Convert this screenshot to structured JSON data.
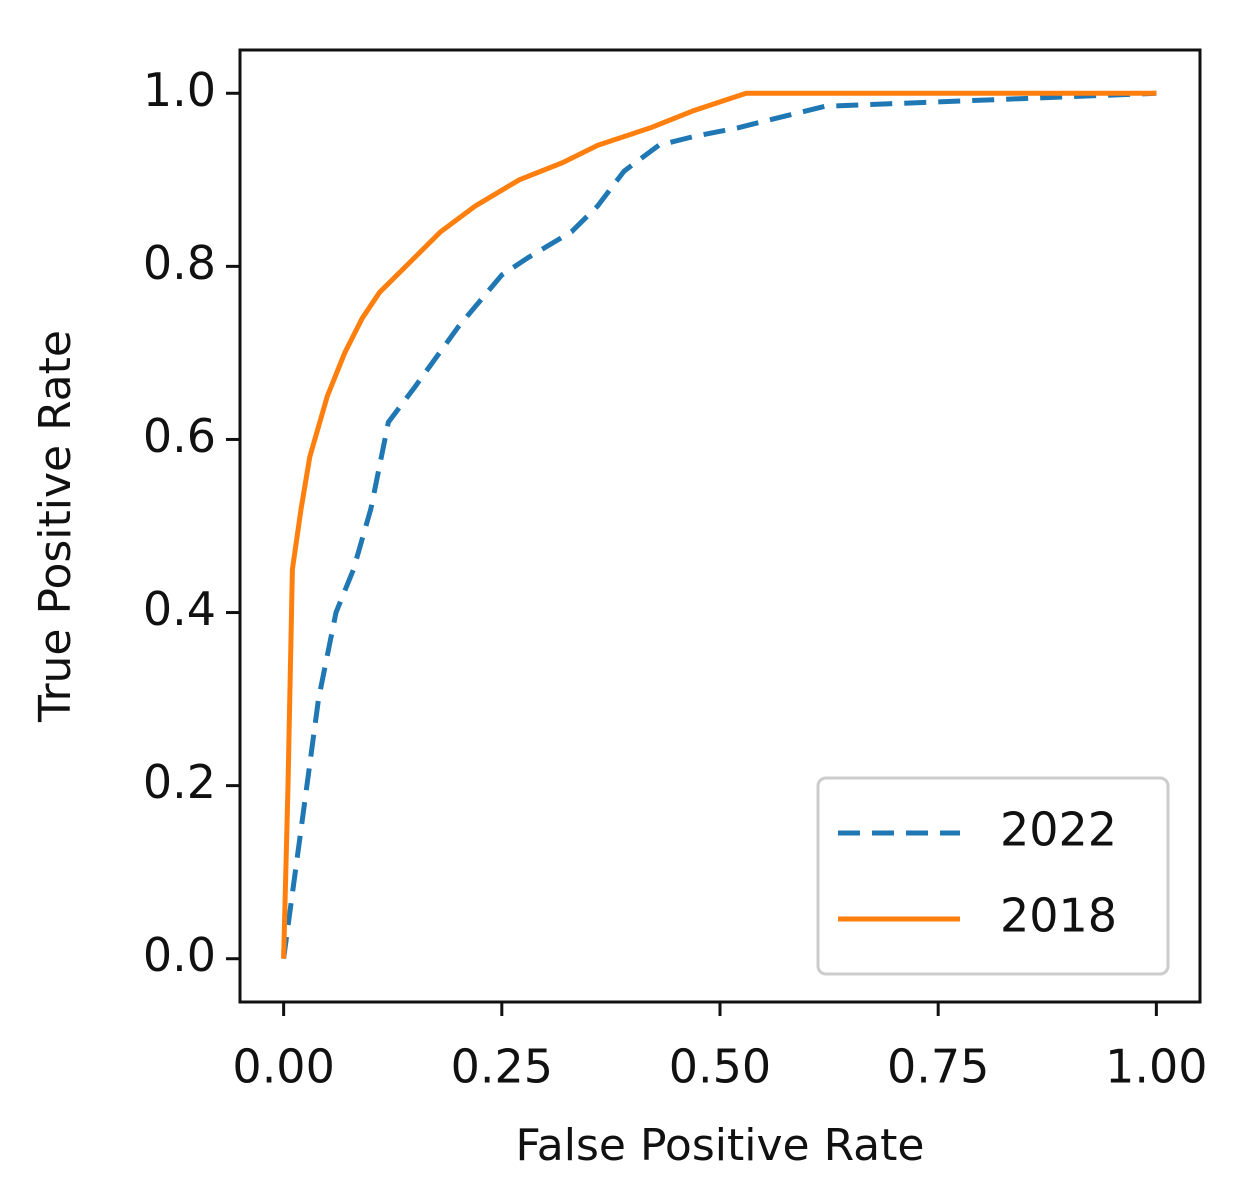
{
  "chart_data": {
    "type": "line",
    "x_label": "False Positive Rate",
    "y_label": "True Positive Rate",
    "xlim": [
      -0.05,
      1.05
    ],
    "ylim": [
      -0.05,
      1.05
    ],
    "xticks": [
      {
        "value": 0,
        "label": "0.00"
      },
      0.25,
      {
        "value": 0.5,
        "label": "0.50"
      },
      0.75,
      {
        "value": 1,
        "label": "1.00"
      }
    ],
    "yticks": [
      {
        "value": 0,
        "label": "0.0"
      },
      0.2,
      0.4,
      0.6,
      0.8,
      {
        "value": 1,
        "label": "1.0"
      }
    ],
    "grid": false,
    "legend": "lower right",
    "series": [
      {
        "name": "2022",
        "color": "#1f77b4",
        "dash": "dashed",
        "x": [
          0,
          0.02,
          0.04,
          0.06,
          0.08,
          0.1,
          0.12,
          0.15,
          0.2,
          0.25,
          0.28,
          0.33,
          0.36,
          0.39,
          0.43,
          0.47,
          0.52,
          0.56,
          0.62,
          0.75,
          1
        ],
        "values": [
          0,
          0.15,
          0.3,
          0.4,
          0.45,
          0.52,
          0.62,
          0.66,
          0.73,
          0.79,
          0.81,
          0.84,
          0.87,
          0.91,
          0.94,
          0.95,
          0.96,
          0.97,
          0.985,
          0.99,
          1
        ]
      },
      {
        "name": "2018",
        "color": "#ff7f0e",
        "dash": "solid",
        "x": [
          0,
          0.005,
          0.01,
          0.02,
          0.03,
          0.05,
          0.07,
          0.09,
          0.11,
          0.14,
          0.18,
          0.22,
          0.27,
          0.32,
          0.36,
          0.42,
          0.47,
          0.5,
          0.53,
          1
        ],
        "values": [
          0,
          0.2,
          0.45,
          0.52,
          0.58,
          0.65,
          0.7,
          0.74,
          0.77,
          0.8,
          0.84,
          0.87,
          0.9,
          0.92,
          0.94,
          0.96,
          0.98,
          0.99,
          1,
          1
        ]
      }
    ]
  }
}
